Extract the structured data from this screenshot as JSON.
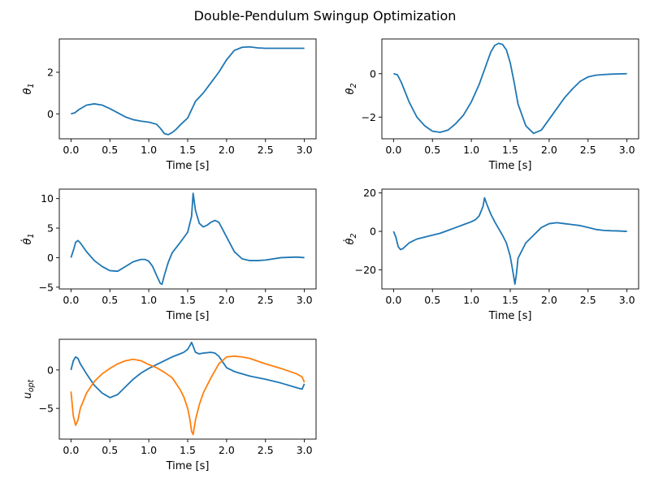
{
  "figure": {
    "suptitle": "Double-Pendulum Swingup Optimization"
  },
  "colors": {
    "series_1": "#1f77b4",
    "series_2": "#ff7f0e"
  },
  "chart_data": [
    {
      "id": "theta1",
      "type": "line",
      "xlabel": "Time [s]",
      "ylabel": "θ1",
      "ylabel_main": "θ",
      "ylabel_sub": "1",
      "xlim": [
        -0.15,
        3.15
      ],
      "ylim": [
        -1.2,
        3.6
      ],
      "xticks": [
        0.0,
        0.5,
        1.0,
        1.5,
        2.0,
        2.5,
        3.0
      ],
      "xtick_labels": [
        "0.0",
        "0.5",
        "1.0",
        "1.5",
        "2.0",
        "2.5",
        "3.0"
      ],
      "yticks": [
        0,
        2
      ],
      "ytick_labels": [
        "0",
        "2"
      ],
      "grid": false,
      "series": [
        {
          "color": "#1f77b4",
          "x": [
            0,
            0.05,
            0.1,
            0.2,
            0.3,
            0.4,
            0.5,
            0.6,
            0.7,
            0.8,
            0.9,
            1.0,
            1.1,
            1.15,
            1.2,
            1.25,
            1.3,
            1.35,
            1.4,
            1.5,
            1.55,
            1.6,
            1.7,
            1.8,
            1.9,
            2.0,
            2.1,
            2.2,
            2.3,
            2.4,
            2.5,
            2.7,
            2.9,
            3.0
          ],
          "y": [
            0,
            0.05,
            0.2,
            0.42,
            0.48,
            0.42,
            0.25,
            0.05,
            -0.15,
            -0.28,
            -0.35,
            -0.4,
            -0.5,
            -0.7,
            -0.95,
            -1.0,
            -0.9,
            -0.75,
            -0.55,
            -0.2,
            0.2,
            0.6,
            1.0,
            1.5,
            2.0,
            2.6,
            3.05,
            3.2,
            3.22,
            3.17,
            3.15,
            3.15,
            3.15,
            3.15
          ]
        }
      ]
    },
    {
      "id": "theta2",
      "type": "line",
      "xlabel": "Time [s]",
      "ylabel": "θ2",
      "ylabel_main": "θ",
      "ylabel_sub": "2",
      "xlim": [
        -0.15,
        3.15
      ],
      "ylim": [
        -3.0,
        1.6
      ],
      "xticks": [
        0.0,
        0.5,
        1.0,
        1.5,
        2.0,
        2.5,
        3.0
      ],
      "xtick_labels": [
        "0.0",
        "0.5",
        "1.0",
        "1.5",
        "2.0",
        "2.5",
        "3.0"
      ],
      "yticks": [
        -2,
        0
      ],
      "ytick_labels": [
        "−2",
        "0"
      ],
      "grid": false,
      "series": [
        {
          "color": "#1f77b4",
          "x": [
            0,
            0.05,
            0.1,
            0.2,
            0.3,
            0.4,
            0.5,
            0.6,
            0.7,
            0.8,
            0.9,
            1.0,
            1.1,
            1.2,
            1.25,
            1.3,
            1.35,
            1.4,
            1.45,
            1.5,
            1.55,
            1.6,
            1.7,
            1.8,
            1.9,
            2.0,
            2.1,
            2.2,
            2.3,
            2.4,
            2.5,
            2.6,
            2.7,
            2.8,
            3.0
          ],
          "y": [
            0,
            -0.05,
            -0.4,
            -1.3,
            -2.0,
            -2.4,
            -2.65,
            -2.7,
            -2.6,
            -2.3,
            -1.9,
            -1.3,
            -0.5,
            0.5,
            1.0,
            1.3,
            1.4,
            1.35,
            1.1,
            0.5,
            -0.4,
            -1.4,
            -2.4,
            -2.75,
            -2.6,
            -2.1,
            -1.6,
            -1.1,
            -0.7,
            -0.35,
            -0.15,
            -0.07,
            -0.04,
            -0.02,
            0
          ]
        }
      ]
    },
    {
      "id": "theta1_dot",
      "type": "line",
      "xlabel": "Time [s]",
      "ylabel": "θ̇1",
      "ylabel_main": "θ̇",
      "ylabel_sub": "1",
      "xlim": [
        -0.15,
        3.15
      ],
      "ylim": [
        -5.3,
        11.6
      ],
      "xticks": [
        0.0,
        0.5,
        1.0,
        1.5,
        2.0,
        2.5,
        3.0
      ],
      "xtick_labels": [
        "0.0",
        "0.5",
        "1.0",
        "1.5",
        "2.0",
        "2.5",
        "3.0"
      ],
      "yticks": [
        -5,
        0,
        5,
        10
      ],
      "ytick_labels": [
        "−5",
        "0",
        "5",
        "10"
      ],
      "grid": false,
      "series": [
        {
          "color": "#1f77b4",
          "x": [
            0,
            0.03,
            0.06,
            0.09,
            0.12,
            0.2,
            0.3,
            0.4,
            0.5,
            0.6,
            0.7,
            0.8,
            0.9,
            0.95,
            1.0,
            1.05,
            1.1,
            1.15,
            1.17,
            1.2,
            1.25,
            1.3,
            1.4,
            1.5,
            1.55,
            1.57,
            1.6,
            1.65,
            1.7,
            1.75,
            1.8,
            1.85,
            1.9,
            2.0,
            2.1,
            2.2,
            2.3,
            2.4,
            2.5,
            2.7,
            2.9,
            3.0
          ],
          "y": [
            0,
            1.2,
            2.6,
            2.9,
            2.5,
            1.0,
            -0.5,
            -1.5,
            -2.2,
            -2.3,
            -1.5,
            -0.7,
            -0.3,
            -0.3,
            -0.6,
            -1.5,
            -3.0,
            -4.4,
            -4.5,
            -3.0,
            -0.8,
            0.8,
            2.5,
            4.3,
            7.0,
            10.9,
            8.0,
            5.8,
            5.2,
            5.5,
            6.0,
            6.3,
            6.0,
            3.5,
            1.0,
            -0.2,
            -0.5,
            -0.5,
            -0.4,
            0,
            0.1,
            0
          ]
        }
      ]
    },
    {
      "id": "theta2_dot",
      "type": "line",
      "xlabel": "Time [s]",
      "ylabel": "θ̇2",
      "ylabel_main": "θ̇",
      "ylabel_sub": "2",
      "xlim": [
        -0.15,
        3.15
      ],
      "ylim": [
        -30,
        22
      ],
      "xticks": [
        0.0,
        0.5,
        1.0,
        1.5,
        2.0,
        2.5,
        3.0
      ],
      "xtick_labels": [
        "0.0",
        "0.5",
        "1.0",
        "1.5",
        "2.0",
        "2.5",
        "3.0"
      ],
      "yticks": [
        -20,
        0,
        20
      ],
      "ytick_labels": [
        "−20",
        "0",
        "20"
      ],
      "grid": false,
      "series": [
        {
          "color": "#1f77b4",
          "x": [
            0,
            0.03,
            0.06,
            0.09,
            0.12,
            0.2,
            0.3,
            0.4,
            0.5,
            0.6,
            0.7,
            0.8,
            0.9,
            1.0,
            1.05,
            1.1,
            1.15,
            1.17,
            1.2,
            1.25,
            1.3,
            1.4,
            1.45,
            1.5,
            1.53,
            1.56,
            1.58,
            1.6,
            1.65,
            1.7,
            1.8,
            1.9,
            2.0,
            2.1,
            2.2,
            2.3,
            2.4,
            2.5,
            2.6,
            2.7,
            2.8,
            2.9,
            3.0
          ],
          "y": [
            0,
            -3,
            -8,
            -9.5,
            -9,
            -6,
            -4,
            -3,
            -2,
            -1,
            0.5,
            2,
            3.5,
            5,
            6,
            8,
            13,
            17.5,
            14,
            9,
            5,
            -2,
            -6,
            -13,
            -20,
            -27.5,
            -22,
            -14,
            -10,
            -6,
            -2,
            2,
            4,
            4.5,
            4,
            3.5,
            3,
            2,
            1,
            0.5,
            0.3,
            0.2,
            0
          ]
        }
      ]
    },
    {
      "id": "u_opt",
      "type": "line",
      "xlabel": "Time [s]",
      "ylabel": "uopt",
      "ylabel_main": "u",
      "ylabel_sub": "opt",
      "xlim": [
        -0.15,
        3.15
      ],
      "ylim": [
        -9.0,
        4.0
      ],
      "xticks": [
        0.0,
        0.5,
        1.0,
        1.5,
        2.0,
        2.5,
        3.0
      ],
      "xtick_labels": [
        "0.0",
        "0.5",
        "1.0",
        "1.5",
        "2.0",
        "2.5",
        "3.0"
      ],
      "yticks": [
        -5,
        0
      ],
      "ytick_labels": [
        "−5",
        "0"
      ],
      "grid": false,
      "series": [
        {
          "color": "#1f77b4",
          "x": [
            0,
            0.03,
            0.06,
            0.09,
            0.12,
            0.2,
            0.3,
            0.4,
            0.5,
            0.6,
            0.7,
            0.8,
            0.9,
            1.0,
            1.1,
            1.2,
            1.3,
            1.4,
            1.45,
            1.5,
            1.53,
            1.55,
            1.57,
            1.6,
            1.65,
            1.7,
            1.8,
            1.85,
            1.9,
            2.0,
            2.1,
            2.2,
            2.3,
            2.5,
            2.7,
            2.9,
            2.97,
            3.0
          ],
          "y": [
            0,
            1.2,
            1.7,
            1.5,
            0.8,
            -0.5,
            -2.0,
            -3.0,
            -3.6,
            -3.2,
            -2.2,
            -1.2,
            -0.4,
            0.2,
            0.7,
            1.2,
            1.7,
            2.1,
            2.3,
            2.7,
            3.2,
            3.6,
            3.1,
            2.3,
            2.1,
            2.2,
            2.3,
            2.2,
            1.8,
            0.3,
            -0.2,
            -0.5,
            -0.8,
            -1.2,
            -1.7,
            -2.3,
            -2.5,
            -1.8
          ]
        },
        {
          "color": "#ff7f0e",
          "x": [
            0,
            0.03,
            0.06,
            0.09,
            0.12,
            0.2,
            0.3,
            0.4,
            0.5,
            0.6,
            0.7,
            0.8,
            0.9,
            1.0,
            1.1,
            1.2,
            1.3,
            1.4,
            1.45,
            1.5,
            1.53,
            1.55,
            1.57,
            1.6,
            1.65,
            1.7,
            1.8,
            1.9,
            2.0,
            2.1,
            2.2,
            2.3,
            2.5,
            2.7,
            2.9,
            2.97,
            3.0
          ],
          "y": [
            -2.8,
            -6.0,
            -7.2,
            -6.5,
            -5.0,
            -3.0,
            -1.5,
            -0.5,
            0.2,
            0.8,
            1.2,
            1.4,
            1.2,
            0.7,
            0.3,
            -0.3,
            -1.0,
            -2.5,
            -3.5,
            -5.0,
            -6.5,
            -8.0,
            -8.4,
            -6.5,
            -4.5,
            -3.0,
            -1.0,
            0.8,
            1.7,
            1.8,
            1.7,
            1.5,
            0.8,
            0.2,
            -0.5,
            -0.9,
            -1.6
          ]
        }
      ]
    }
  ]
}
